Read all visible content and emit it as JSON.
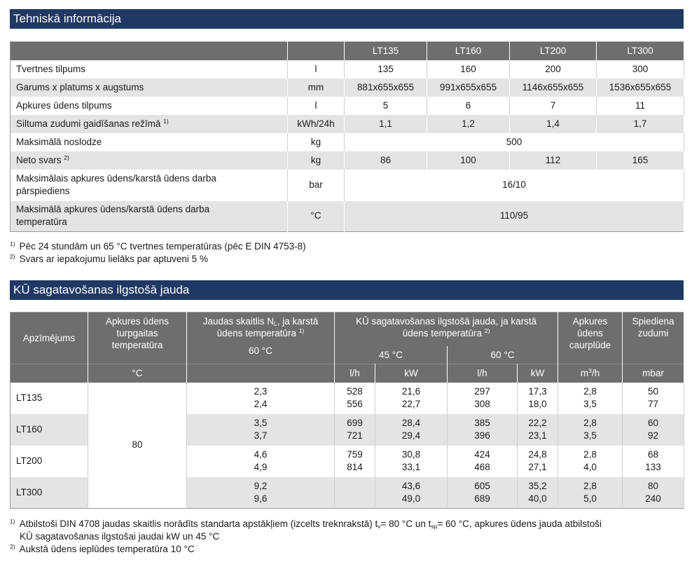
{
  "section1": {
    "title": "Tehniskā informācija",
    "columns": [
      "LT135",
      "LT160",
      "LT200",
      "LT300"
    ],
    "rows": [
      {
        "label": "Tvertnes tilpums",
        "sup": "",
        "unit": "l",
        "values": [
          "135",
          "160",
          "200",
          "300"
        ]
      },
      {
        "label": "Garums x platums x augstums",
        "sup": "",
        "unit": "mm",
        "values": [
          "881x655x655",
          "991x655x655",
          "1146x655x655",
          "1536x655x655"
        ]
      },
      {
        "label": "Apkures ūdens tilpums",
        "sup": "",
        "unit": "l",
        "values": [
          "5",
          "6",
          "7",
          "11"
        ]
      },
      {
        "label": "Siltuma zudumi gaidīšanas režīmā",
        "sup": "1)",
        "unit": "kWh/24h",
        "values": [
          "1,1",
          "1,2",
          "1,4",
          "1,7"
        ]
      },
      {
        "label": "Maksimālā noslodze",
        "sup": "",
        "unit": "kg",
        "merged": "500"
      },
      {
        "label": "Neto svars",
        "sup": "2)",
        "unit": "kg",
        "values": [
          "86",
          "100",
          "112",
          "165"
        ]
      },
      {
        "label_line1": "Maksimālais apkures ūdens/karstā ūdens darba",
        "label_line2": "pārspiediens",
        "unit": "bar",
        "merged": "16/10"
      },
      {
        "label_line1": "Maksimālā apkures ūdens/karstā ūdens darba",
        "label_line2": "temperatūra",
        "unit": "°C",
        "merged": "110/95"
      }
    ],
    "notes": [
      {
        "mark": "1)",
        "text": "Pēc 24 stundām un 65 °C tvertnes temperatūras (pēc E DIN 4753-8)"
      },
      {
        "mark": "2)",
        "text": "Svars ar iepakojumu lielāks par aptuveni 5 %"
      }
    ]
  },
  "section2": {
    "title": "KŪ sagatavošanas ilgstošā jauda",
    "headers": {
      "designation": "Apzīmējums",
      "supply_temp": [
        "Apkures ūdens",
        "turpgaitas",
        "temperatūra"
      ],
      "supply_temp_unit": "°C",
      "nl_line1_pre": "Jaudas skaitlis N",
      "nl_sub": "L",
      "nl_line1_post": ", ja karstā",
      "nl_line2": "ūdens temperatūra",
      "nl_sup": "1)",
      "nl_temp": "60 °C",
      "cont_line1": "KŪ sagatavošanas ilgstošā jauda, ja karstā",
      "cont_line2": "ūdens temperatūra",
      "cont_sup": "2)",
      "cont_45": "45 °C",
      "cont_60": "60 °C",
      "unit_lh": "l/h",
      "unit_kw": "kW",
      "flow": [
        "Apkures",
        "ūdens",
        "caurplūde"
      ],
      "flow_unit_pre": "m",
      "flow_unit_sup": "3",
      "flow_unit_post": "/h",
      "loss": [
        "Spiediena",
        "zudumi"
      ],
      "loss_unit": "mbar"
    },
    "supply_temp_value": "80",
    "rows": [
      {
        "name": "LT135",
        "nl": [
          "2,3",
          "2,4"
        ],
        "lh45": [
          "528",
          "556"
        ],
        "kw45": [
          "21,6",
          "22,7"
        ],
        "lh60": [
          "297",
          "308"
        ],
        "kw60": [
          "17,3",
          "18,0"
        ],
        "flow": [
          "2,8",
          "3,5"
        ],
        "loss": [
          "50",
          "77"
        ]
      },
      {
        "name": "LT160",
        "nl": [
          "3,5",
          "3,7"
        ],
        "lh45": [
          "699",
          "721"
        ],
        "kw45": [
          "28,4",
          "29,4"
        ],
        "lh60": [
          "385",
          "396"
        ],
        "kw60": [
          "22,2",
          "23,1"
        ],
        "flow": [
          "2,8",
          "3,5"
        ],
        "loss": [
          "60",
          "92"
        ]
      },
      {
        "name": "LT200",
        "nl": [
          "4,6",
          "4,9"
        ],
        "lh45": [
          "759",
          "814"
        ],
        "kw45": [
          "30,8",
          "33,1"
        ],
        "lh60": [
          "424",
          "468"
        ],
        "kw60": [
          "24,8",
          "27,1"
        ],
        "flow": [
          "2,8",
          "4,0"
        ],
        "loss": [
          "68",
          "133"
        ]
      },
      {
        "name": "LT300",
        "nl": [
          "9,2",
          "9,6"
        ],
        "lh45": [
          "",
          ""
        ],
        "kw45": [
          "43,6",
          "49,0"
        ],
        "lh60": [
          "605",
          "689"
        ],
        "kw60": [
          "35,2",
          "40,0"
        ],
        "flow": [
          "2,8",
          "5,0"
        ],
        "loss": [
          "80",
          "240"
        ]
      }
    ],
    "notes": {
      "n1_mark": "1)",
      "n1_a": "Atbilstoši DIN 4708 jaudas skaitlis norādīts standarta apstākļiem (izcelts treknrakstā) t",
      "n1_sub1": "v",
      "n1_b": "= 80 °C un t",
      "n1_sub2": "sp",
      "n1_c": "= 60 °C, apkures ūdens jauda atbilstoši",
      "n1_line2": "KŪ sagatavošanas ilgstošai jaudai kW un 45 °C",
      "n2_mark": "2)",
      "n2_text": "Aukstā ūdens ieplūdes temperatūra 10 °C"
    }
  }
}
